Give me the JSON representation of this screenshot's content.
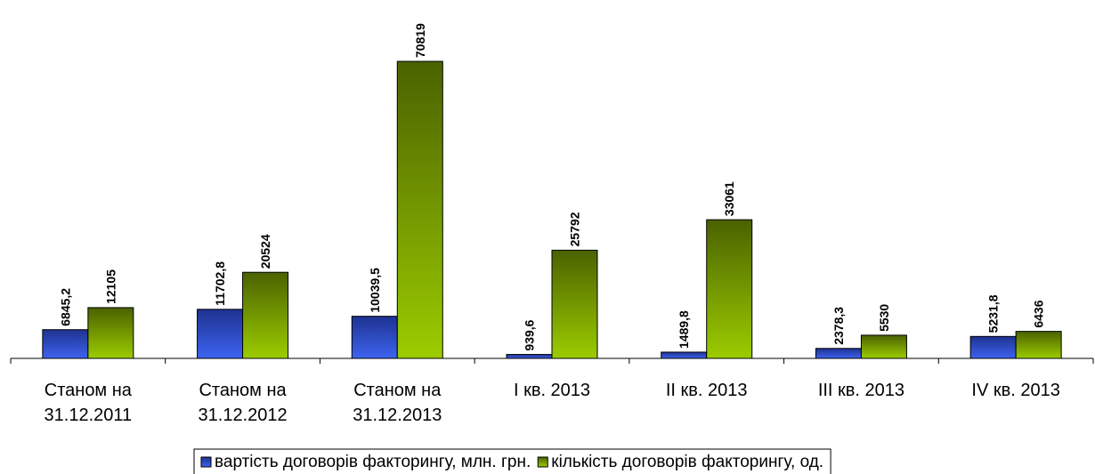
{
  "chart_data": {
    "type": "bar",
    "categories": [
      "Станом на\n31.12.2011",
      "Станом на\n31.12.2012",
      "Станом на\n31.12.2013",
      "I кв. 2013",
      "II кв. 2013",
      "III кв. 2013",
      "IV кв. 2013"
    ],
    "series": [
      {
        "name": "вартість договорів факторингу, млн. грн.",
        "color": "#2c4bd6",
        "values": [
          6845.2,
          11702.8,
          10039.5,
          939.6,
          1489.8,
          2378.3,
          5231.8
        ],
        "value_labels": [
          "6845,2",
          "11702,8",
          "10039,5",
          "939,6",
          "1489,8",
          "2378,3",
          "5231,8"
        ]
      },
      {
        "name": "кількість договорів факторингу, од.",
        "color": "#7aa300",
        "values": [
          12105,
          20524,
          70819,
          25792,
          33061,
          5530,
          6436
        ]
      }
    ],
    "legend": "bottom"
  }
}
